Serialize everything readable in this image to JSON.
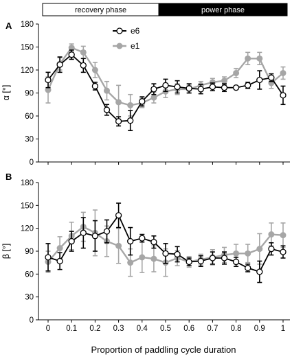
{
  "phase_bar": {
    "recovery_label": "recovery phase",
    "power_label": "power phase",
    "recovery_fraction": 0.475
  },
  "colors": {
    "e6": "#000000",
    "e1": "#a6a6a6"
  },
  "xlabel": "Proportion of paddling cycle duration",
  "chart_data": [
    {
      "type": "line",
      "panel_label": "A",
      "ylabel": "α [°]",
      "ylim": [
        0,
        180
      ],
      "yticks": [
        "0",
        "30",
        "60",
        "90",
        "120",
        "150",
        "180"
      ],
      "xlim": [
        0,
        1
      ],
      "xticks": [
        "0",
        "0.1",
        "0.2",
        "0.3",
        "0.4",
        "0.5",
        "0.6",
        "0.7",
        "0.8",
        "0.9",
        "1"
      ],
      "legend_position": "top-center",
      "x": [
        0,
        0.05,
        0.1,
        0.15,
        0.2,
        0.25,
        0.3,
        0.35,
        0.4,
        0.45,
        0.5,
        0.55,
        0.6,
        0.65,
        0.7,
        0.75,
        0.8,
        0.85,
        0.9,
        0.95,
        1
      ],
      "series": [
        {
          "name": "e6",
          "marker": "open-circle",
          "values": [
            107,
            127,
            140,
            126,
            99,
            68,
            53,
            54,
            79,
            95,
            100,
            98,
            96,
            95,
            98,
            97,
            97,
            100,
            107,
            110,
            87
          ],
          "errors": [
            10,
            10,
            6,
            9,
            5,
            7,
            6,
            13,
            6,
            7,
            8,
            8,
            6,
            6,
            5,
            5,
            2,
            4,
            12,
            5,
            12
          ]
        },
        {
          "name": "e1",
          "marker": "filled-circle",
          "values": [
            94,
            128,
            149,
            143,
            120,
            93,
            78,
            74,
            77,
            84,
            92,
            95,
            95,
            100,
            104,
            106,
            116,
            135,
            135,
            103,
            116
          ],
          "errors": [
            17,
            8,
            5,
            8,
            10,
            12,
            22,
            14,
            6,
            7,
            8,
            7,
            5,
            5,
            5,
            5,
            6,
            8,
            8,
            7,
            8
          ]
        }
      ]
    },
    {
      "type": "line",
      "panel_label": "B",
      "ylabel": "β [°]",
      "ylim": [
        0,
        180
      ],
      "yticks": [
        "0",
        "30",
        "60",
        "90",
        "120",
        "150",
        "180"
      ],
      "xlim": [
        0,
        1
      ],
      "xticks": [
        "0",
        "0.1",
        "0.2",
        "0.3",
        "0.4",
        "0.5",
        "0.6",
        "0.7",
        "0.8",
        "0.9",
        "1"
      ],
      "x": [
        0,
        0.05,
        0.1,
        0.15,
        0.2,
        0.25,
        0.3,
        0.35,
        0.4,
        0.45,
        0.5,
        0.55,
        0.6,
        0.65,
        0.7,
        0.75,
        0.8,
        0.85,
        0.9,
        0.95,
        1
      ],
      "series": [
        {
          "name": "e6",
          "marker": "open-circle",
          "values": [
            82,
            77,
            103,
            114,
            110,
            116,
            137,
            103,
            107,
            102,
            87,
            86,
            76,
            77,
            81,
            81,
            76,
            68,
            63,
            93,
            89
          ],
          "errors": [
            18,
            11,
            13,
            20,
            20,
            15,
            16,
            18,
            5,
            8,
            13,
            10,
            5,
            7,
            8,
            8,
            6,
            5,
            14,
            8,
            8
          ]
        },
        {
          "name": "e1",
          "marker": "filled-circle",
          "values": [
            76,
            94,
            110,
            122,
            114,
            103,
            97,
            75,
            82,
            80,
            75,
            81,
            76,
            79,
            82,
            85,
            87,
            87,
            93,
            112,
            111
          ],
          "errors": [
            14,
            15,
            18,
            19,
            30,
            20,
            23,
            18,
            20,
            17,
            18,
            10,
            7,
            7,
            10,
            10,
            12,
            12,
            20,
            15,
            16
          ]
        }
      ]
    }
  ]
}
